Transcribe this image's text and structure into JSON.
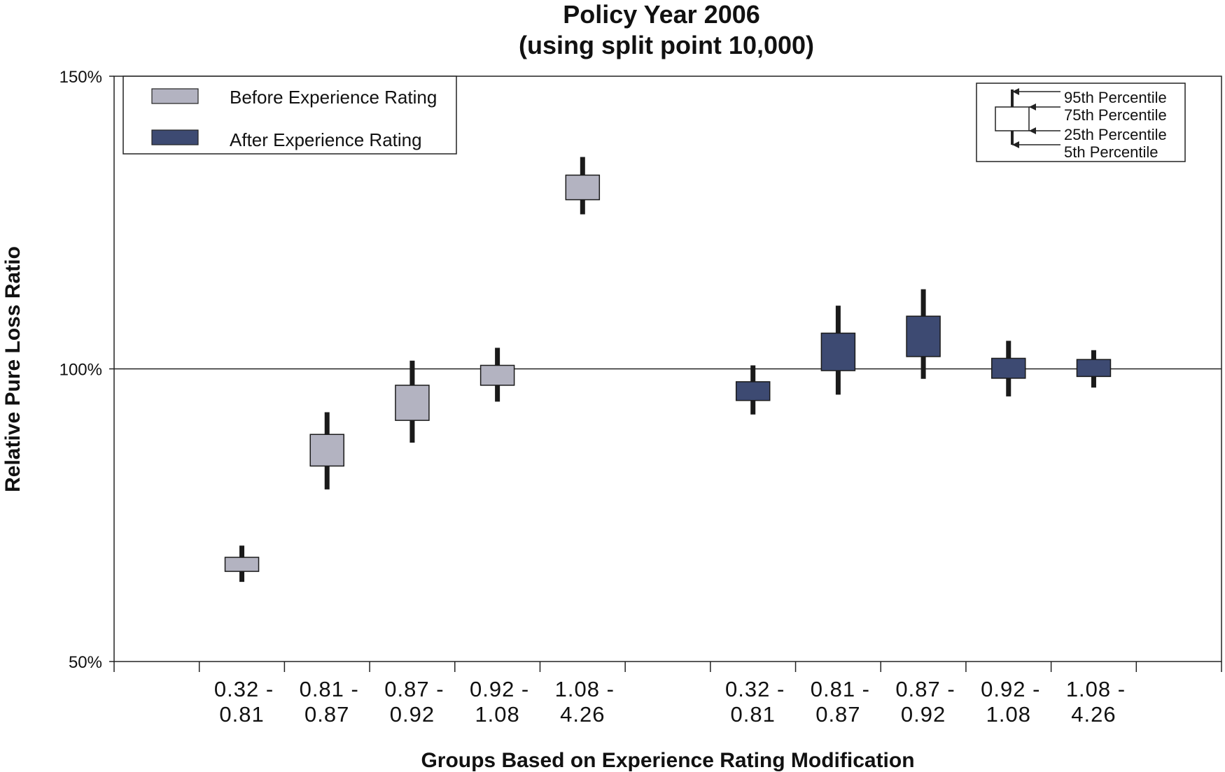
{
  "chart_data": {
    "type": "box",
    "title": "Policy Year 2006",
    "subtitle": "(using split point 10,000)",
    "ylabel": "Relative Pure Loss Ratio",
    "xlabel": "Groups Based on Experience Rating Modification",
    "ylim": [
      50,
      150
    ],
    "yticks": [
      {
        "value": 150,
        "label": "150%"
      },
      {
        "value": 100,
        "label": "100%"
      },
      {
        "value": 50,
        "label": "50%"
      }
    ],
    "reference_line": 100,
    "legend": {
      "placement": "top-left",
      "entries": [
        {
          "name": "Before Experience Rating",
          "color": "#b3b3c1"
        },
        {
          "name": "After Experience Rating",
          "color": "#3d4a72"
        }
      ]
    },
    "percentile_key": {
      "placement": "top-right",
      "labels": [
        "95th Percentile",
        "75th Percentile",
        "25th Percentile",
        "5th Percentile"
      ]
    },
    "categories": [
      {
        "line1": "0.32 -",
        "line2": "0.81"
      },
      {
        "line1": "0.81 -",
        "line2": "0.87"
      },
      {
        "line1": "0.87 -",
        "line2": "0.92"
      },
      {
        "line1": "0.92 -",
        "line2": "1.08"
      },
      {
        "line1": "1.08 -",
        "line2": "4.26"
      }
    ],
    "series": [
      {
        "name": "Before Experience Rating",
        "color": "#b3b3c1",
        "boxes": [
          {
            "category": "0.32 - 0.81",
            "p5": 63.6,
            "p25": 65.4,
            "p75": 67.8,
            "p95": 69.8
          },
          {
            "category": "0.81 - 0.87",
            "p5": 79.4,
            "p25": 83.4,
            "p75": 88.8,
            "p95": 92.6
          },
          {
            "category": "0.87 - 0.92",
            "p5": 87.4,
            "p25": 91.2,
            "p75": 97.2,
            "p95": 101.4
          },
          {
            "category": "0.92 - 1.08",
            "p5": 94.4,
            "p25": 97.2,
            "p75": 100.6,
            "p95": 103.6
          },
          {
            "category": "1.08 - 4.26",
            "p5": 126.4,
            "p25": 128.9,
            "p75": 133.1,
            "p95": 136.2
          }
        ]
      },
      {
        "name": "After Experience Rating",
        "color": "#3d4a72",
        "boxes": [
          {
            "category": "0.32 - 0.81",
            "p5": 92.2,
            "p25": 94.6,
            "p75": 97.8,
            "p95": 100.6
          },
          {
            "category": "0.81 - 0.87",
            "p5": 95.6,
            "p25": 99.7,
            "p75": 106.1,
            "p95": 110.8
          },
          {
            "category": "0.87 - 0.92",
            "p5": 98.3,
            "p25": 102.1,
            "p75": 109.0,
            "p95": 113.6
          },
          {
            "category": "0.92 - 1.08",
            "p5": 95.3,
            "p25": 98.4,
            "p75": 101.8,
            "p95": 104.8
          },
          {
            "category": "1.08 - 4.26",
            "p5": 96.8,
            "p25": 98.7,
            "p75": 101.6,
            "p95": 103.2
          }
        ]
      }
    ]
  }
}
